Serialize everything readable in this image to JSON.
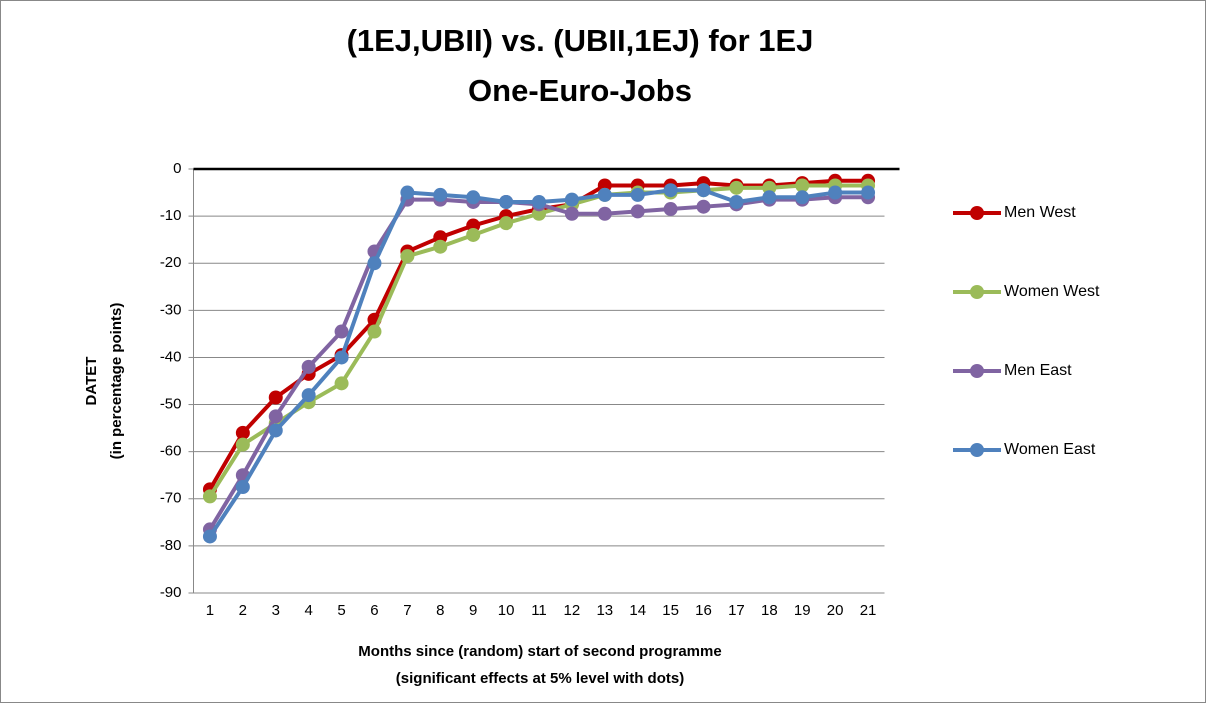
{
  "chart_data": {
    "type": "line",
    "title": "(1EJ,UBII) vs. (UBII,1EJ) for 1EJ",
    "subtitle": "One-Euro-Jobs",
    "y_label": "DATET",
    "y_label_sub": "(in percentage points)",
    "x_label": "Months since (random) start of second programme",
    "x_label_sub": "(significant effects at 5% level with dots)",
    "categories": [
      "1",
      "2",
      "3",
      "4",
      "5",
      "6",
      "7",
      "8",
      "9",
      "10",
      "11",
      "12",
      "13",
      "14",
      "15",
      "16",
      "17",
      "18",
      "19",
      "20",
      "21"
    ],
    "series": [
      {
        "name": "Men West",
        "color": "#c00000",
        "values": [
          -68,
          -56,
          -48.5,
          -43.5,
          -39.5,
          -32,
          -17.5,
          -14.5,
          -12,
          -10,
          -8.5,
          -7.5,
          -3.5,
          -3.5,
          -3.5,
          -3,
          -3.5,
          -3.5,
          -3,
          -2.5,
          -2.5
        ]
      },
      {
        "name": "Women West",
        "color": "#9bbb59",
        "values": [
          -69.5,
          -58.5,
          -54,
          -49.5,
          -45.5,
          -34.5,
          -18.5,
          -16.5,
          -14,
          -11.5,
          -9.5,
          -7.5,
          -5.5,
          -5,
          -5,
          -4.5,
          -4,
          -4,
          -3.5,
          -3.5,
          -3.5
        ]
      },
      {
        "name": "Men East",
        "color": "#8064a2",
        "values": [
          -76.5,
          -65,
          -52.5,
          -42,
          -34.5,
          -17.5,
          -6.5,
          -6.5,
          -7,
          -7,
          -7.5,
          -9.5,
          -9.5,
          -9,
          -8.5,
          -8,
          -7.5,
          -6.5,
          -6.5,
          -6,
          -6
        ]
      },
      {
        "name": "Women East",
        "color": "#4f81bd",
        "values": [
          -78,
          -67.5,
          -55.5,
          -48,
          -40,
          -20,
          -5,
          -5.5,
          -6,
          -7,
          -7,
          -6.5,
          -5.5,
          -5.5,
          -4.5,
          -4.5,
          -7,
          -6,
          -6,
          -5,
          -5
        ]
      }
    ],
    "ylim": [
      -90,
      0
    ],
    "yticks": [
      -90,
      -80,
      -70,
      -60,
      -50,
      -40,
      -30,
      -20,
      -10,
      0
    ],
    "grid": true,
    "legend": "right",
    "markers": true
  }
}
